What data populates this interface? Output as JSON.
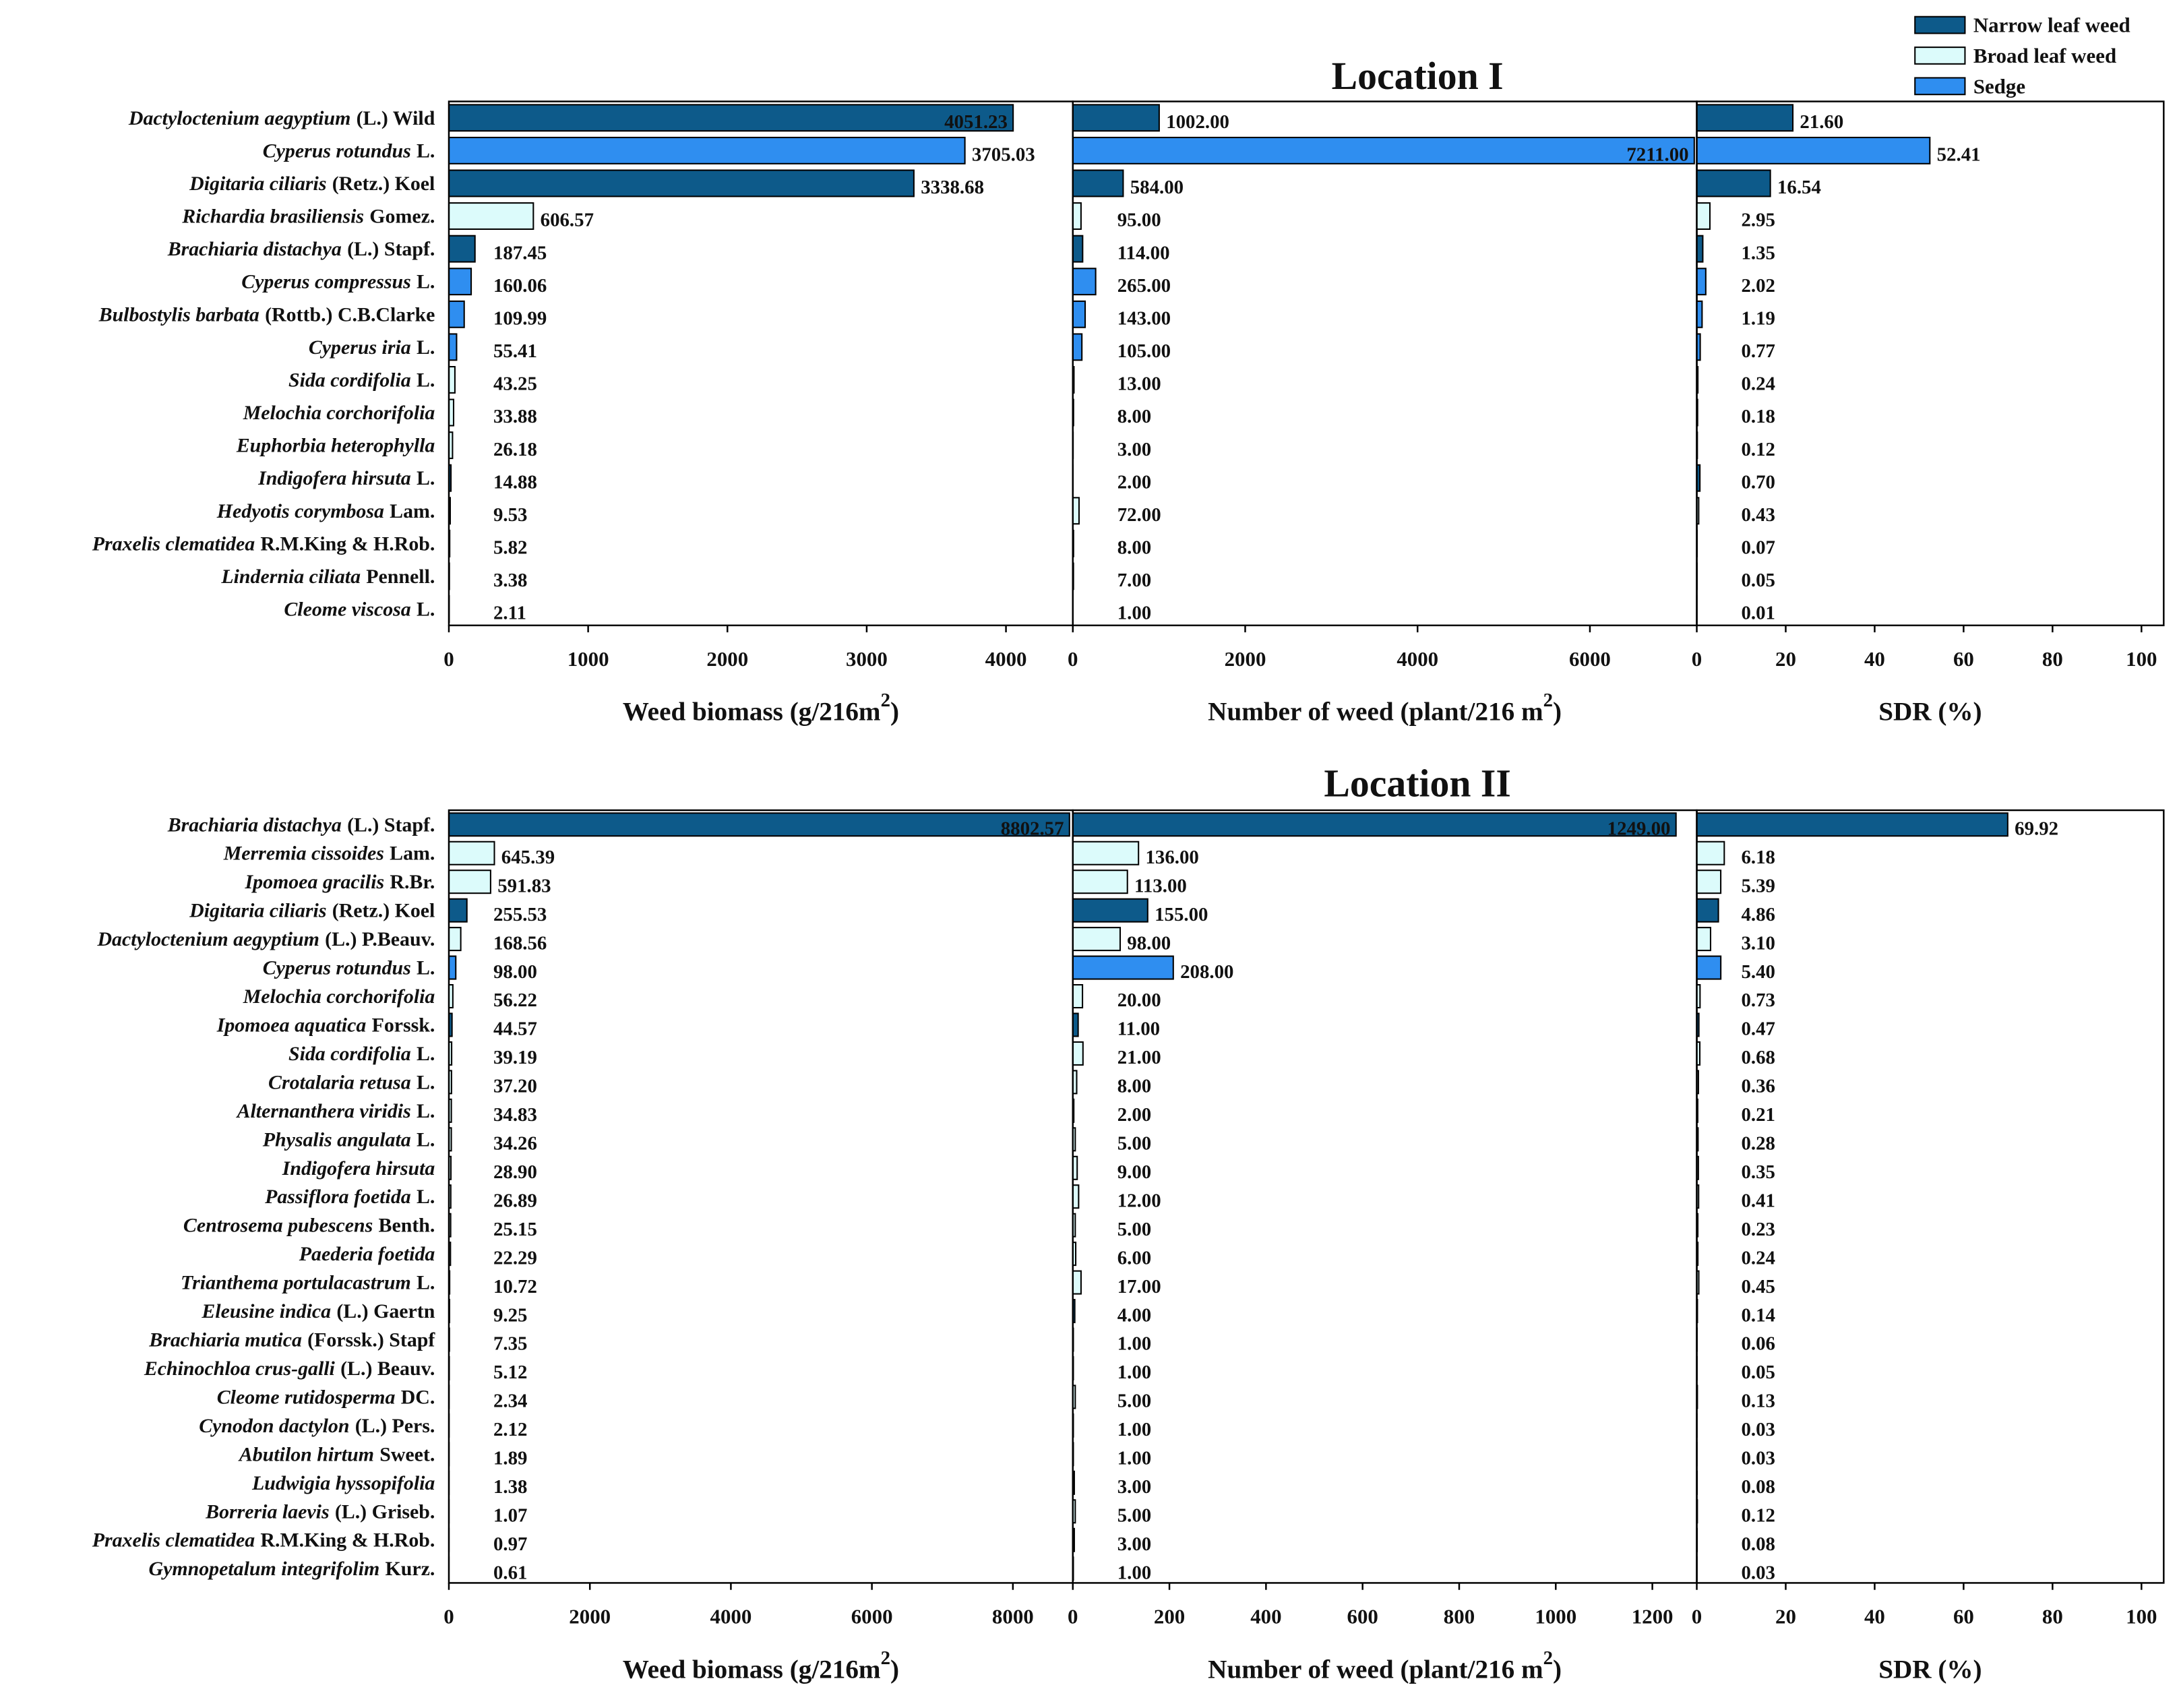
{
  "chart_data": [
    {
      "type": "bar",
      "orientation": "horizontal",
      "title": "Location I",
      "legend": [
        {
          "name": "Narrow leaf weed",
          "color": "#0d5a8a"
        },
        {
          "name": "Broad leaf weed",
          "color": "#dcfbfb"
        },
        {
          "name": "Sedge",
          "color": "#2f8ef0"
        }
      ],
      "categories": [
        {
          "species": "Dactyloctenium aegyptium",
          "authority": "(L.) Wild"
        },
        {
          "species": "Cyperus rotundus",
          "authority": "L."
        },
        {
          "species": "Digitaria ciliaris",
          "authority": "(Retz.) Koel"
        },
        {
          "species": "Richardia brasiliensis",
          "authority": "Gomez."
        },
        {
          "species": "Brachiaria distachya",
          "authority": "(L.) Stapf."
        },
        {
          "species": "Cyperus compressus",
          "authority": "L."
        },
        {
          "species": "Bulbostylis barbata",
          "authority": "(Rottb.) C.B.Clarke"
        },
        {
          "species": "Cyperus  iria",
          "authority": "L."
        },
        {
          "species": "Sida cordifolia",
          "authority": "L."
        },
        {
          "species": "Melochia corchorifolia"
        },
        {
          "species": "Euphorbia heterophylla"
        },
        {
          "species": "Indigofera hirsuta",
          "authority": "L."
        },
        {
          "species": "Hedyotis corymbosa",
          "authority": "Lam."
        },
        {
          "species": "Praxelis clematidea",
          "authority": "R.M.King & H.Rob."
        },
        {
          "species": "Lindernia ciliata",
          "authority": "Pennell."
        },
        {
          "species": "Cleome viscosa",
          "authority": "L."
        }
      ],
      "colors": [
        "#0d5a8a",
        "#2f8ef0",
        "#0d5a8a",
        "#dcfbfb",
        "#0d5a8a",
        "#2f8ef0",
        "#2f8ef0",
        "#2f8ef0",
        "#dcfbfb",
        "#dcfbfb",
        "#dcfbfb",
        "#0d5a8a",
        "#dcfbfb",
        "#dcfbfb",
        "#dcfbfb",
        "#dcfbfb"
      ],
      "panels": [
        {
          "x_label": {
            "text": "Weed biomass (g/216m",
            "sup": "2",
            "after": ")"
          },
          "values": [
            4051.23,
            3705.03,
            3338.68,
            606.57,
            187.45,
            160.06,
            109.99,
            55.41,
            43.25,
            33.88,
            26.18,
            14.88,
            9.53,
            5.82,
            3.38,
            2.11
          ],
          "value_labels": [
            "4051.23",
            "3705.03",
            "3338.68",
            "606.57",
            "187.45",
            "160.06",
            "109.99",
            "55.41",
            "43.25",
            "33.88",
            "26.18",
            "14.88",
            "9.53",
            "5.82",
            "3.38",
            "2.11"
          ],
          "xlim": [
            0,
            4480
          ],
          "xticks": [
            0,
            1000,
            2000,
            3000,
            4000
          ]
        },
        {
          "x_label": {
            "text": "Number of weed (plant/216 m",
            "sup": "2",
            "after": ")"
          },
          "values": [
            1002,
            7211,
            584,
            95,
            114,
            265,
            143,
            105,
            13,
            8,
            3,
            2,
            72,
            8,
            7,
            1
          ],
          "value_labels": [
            "1002.00",
            "7211.00",
            "584.00",
            "95.00",
            "114.00",
            "265.00",
            "143.00",
            "105.00",
            "13.00",
            "8.00",
            "3.00",
            "2.00",
            "72.00",
            "8.00",
            "7.00",
            "1.00"
          ],
          "xlim": [
            0,
            7240
          ],
          "xticks": [
            0,
            2000,
            4000,
            6000
          ]
        },
        {
          "x_label": {
            "text": "SDR (%)"
          },
          "values": [
            21.6,
            52.41,
            16.54,
            2.95,
            1.35,
            2.02,
            1.19,
            0.77,
            0.24,
            0.18,
            0.12,
            0.7,
            0.43,
            0.07,
            0.05,
            0.01
          ],
          "value_labels": [
            "21.60",
            "52.41",
            "16.54",
            "2.95",
            "1.35",
            "2.02",
            "1.19",
            "0.77",
            "0.24",
            "0.18",
            "0.12",
            "0.70",
            "0.43",
            "0.07",
            "0.05",
            "0.01"
          ],
          "xlim": [
            0,
            105
          ],
          "xticks": [
            0,
            20,
            40,
            60,
            80,
            100
          ]
        }
      ]
    },
    {
      "type": "bar",
      "orientation": "horizontal",
      "title": "Location II",
      "categories": [
        {
          "species": "Brachiaria distachya",
          "authority": "(L.) Stapf."
        },
        {
          "species": "Merremia cissoides",
          "authority": "Lam."
        },
        {
          "species": "Ipomoea gracilis",
          "authority": "R.Br."
        },
        {
          "species": "Digitaria ciliaris",
          "authority": "(Retz.) Koel"
        },
        {
          "species": "Dactyloctenium aegyptium",
          "authority": "(L.) P.Beauv."
        },
        {
          "species": "Cyperus rotundus",
          "authority": "L."
        },
        {
          "species": "Melochia corchorifolia"
        },
        {
          "species": "Ipomoea aquatica",
          "authority": "Forssk."
        },
        {
          "species": "Sida cordifolia",
          "authority": "L."
        },
        {
          "species": "Crotalaria retusa",
          "authority": "L."
        },
        {
          "species": "Alternanthera viridis",
          "authority": "L."
        },
        {
          "species": "Physalis angulata",
          "authority": "L."
        },
        {
          "species": "Indigofera hirsuta"
        },
        {
          "species": "Passiflora foetida",
          "authority": "L."
        },
        {
          "species": "Centrosema pubescens",
          "authority": "Benth."
        },
        {
          "species": "Paederia foetida"
        },
        {
          "species": "Trianthema portulacastrum",
          "authority": "L."
        },
        {
          "species": "Eleusine indica",
          "authority": "(L.) Gaertn"
        },
        {
          "species": "Brachiaria mutica",
          "authority": "(Forssk.) Stapf"
        },
        {
          "species": "Echinochloa crus-galli",
          "authority": "(L.) Beauv."
        },
        {
          "species": "Cleome rutidosperma",
          "authority": "DC."
        },
        {
          "species": "Cynodon dactylon",
          "authority": "(L.) Pers."
        },
        {
          "species": "Abutilon hirtum",
          "authority": "Sweet."
        },
        {
          "species": "Ludwigia hyssopifolia"
        },
        {
          "species": "Borreria laevis",
          "authority": "(L.) Griseb."
        },
        {
          "species": "Praxelis clematidea",
          "authority": "R.M.King & H.Rob."
        },
        {
          "species": "Gymnopetalum integrifolim",
          "authority": "Kurz."
        }
      ],
      "colors": [
        "#0d5a8a",
        "#dcfbfb",
        "#dcfbfb",
        "#0d5a8a",
        "#dcfbfb",
        "#2f8ef0",
        "#dcfbfb",
        "#0d5a8a",
        "#dcfbfb",
        "#dcfbfb",
        "#dcfbfb",
        "#dcfbfb",
        "#dcfbfb",
        "#dcfbfb",
        "#dcfbfb",
        "#dcfbfb",
        "#dcfbfb",
        "#0d5a8a",
        "#0d5a8a",
        "#0d5a8a",
        "#dcfbfb",
        "#0d5a8a",
        "#dcfbfb",
        "#dcfbfb",
        "#dcfbfb",
        "#dcfbfb",
        "#dcfbfb"
      ],
      "panels": [
        {
          "x_label": {
            "text": "Weed biomass (g/216m",
            "sup": "2",
            "after": ")"
          },
          "values": [
            8802.57,
            645.39,
            591.83,
            255.53,
            168.56,
            98,
            56.22,
            44.57,
            39.19,
            37.2,
            34.83,
            34.26,
            28.9,
            26.89,
            25.15,
            22.29,
            10.72,
            9.25,
            7.35,
            5.12,
            2.34,
            2.12,
            1.89,
            1.38,
            1.07,
            0.97,
            0.61
          ],
          "value_labels": [
            "8802.57",
            "645.39",
            "591.83",
            "255.53",
            "168.56",
            "98.00",
            "56.22",
            "44.57",
            "39.19",
            "37.20",
            "34.83",
            "34.26",
            "28.90",
            "26.89",
            "25.15",
            "22.29",
            "10.72",
            "9.25",
            "7.35",
            "5.12",
            "2.34",
            "2.12",
            "1.89",
            "1.38",
            "1.07",
            "0.97",
            "0.61"
          ],
          "xlim": [
            0,
            8850
          ],
          "xticks": [
            0,
            2000,
            4000,
            6000,
            8000
          ]
        },
        {
          "x_label": {
            "text": "Number of weed (plant/216 m",
            "sup": "2",
            "after": ")"
          },
          "values": [
            1249,
            136,
            113,
            155,
            98,
            208,
            20,
            11,
            21,
            8,
            2,
            5,
            9,
            12,
            5,
            6,
            17,
            4,
            1,
            1,
            5,
            1,
            1,
            3,
            5,
            3,
            1
          ],
          "value_labels": [
            "1249.00",
            "136.00",
            "113.00",
            "155.00",
            "98.00",
            "208.00",
            "20.00",
            "11.00",
            "21.00",
            "8.00",
            "2.00",
            "5.00",
            "9.00",
            "12.00",
            "5.00",
            "6.00",
            "17.00",
            "4.00",
            "1.00",
            "1.00",
            "5.00",
            "1.00",
            "1.00",
            "3.00",
            "5.00",
            "3.00",
            "1.00"
          ],
          "xlim": [
            0,
            1292
          ],
          "xticks": [
            0,
            200,
            400,
            600,
            800,
            1000,
            1200
          ]
        },
        {
          "x_label": {
            "text": "SDR (%)"
          },
          "values": [
            69.92,
            6.18,
            5.39,
            4.86,
            3.1,
            5.4,
            0.73,
            0.47,
            0.68,
            0.36,
            0.21,
            0.28,
            0.35,
            0.41,
            0.23,
            0.24,
            0.45,
            0.14,
            0.06,
            0.05,
            0.13,
            0.03,
            0.03,
            0.08,
            0.12,
            0.08,
            0.03
          ],
          "value_labels": [
            "69.92",
            "6.18",
            "5.39",
            "4.86",
            "3.10",
            "5.40",
            "0.73",
            "0.47",
            "0.68",
            "0.36",
            "0.21",
            "0.28",
            "0.35",
            "0.41",
            "0.23",
            "0.24",
            "0.45",
            "0.14",
            "0.06",
            "0.05",
            "0.13",
            "0.03",
            "0.03",
            "0.08",
            "0.12",
            "0.08",
            "0.03"
          ],
          "xlim": [
            0,
            105
          ],
          "xticks": [
            0,
            20,
            40,
            60,
            80,
            100
          ]
        }
      ]
    }
  ]
}
